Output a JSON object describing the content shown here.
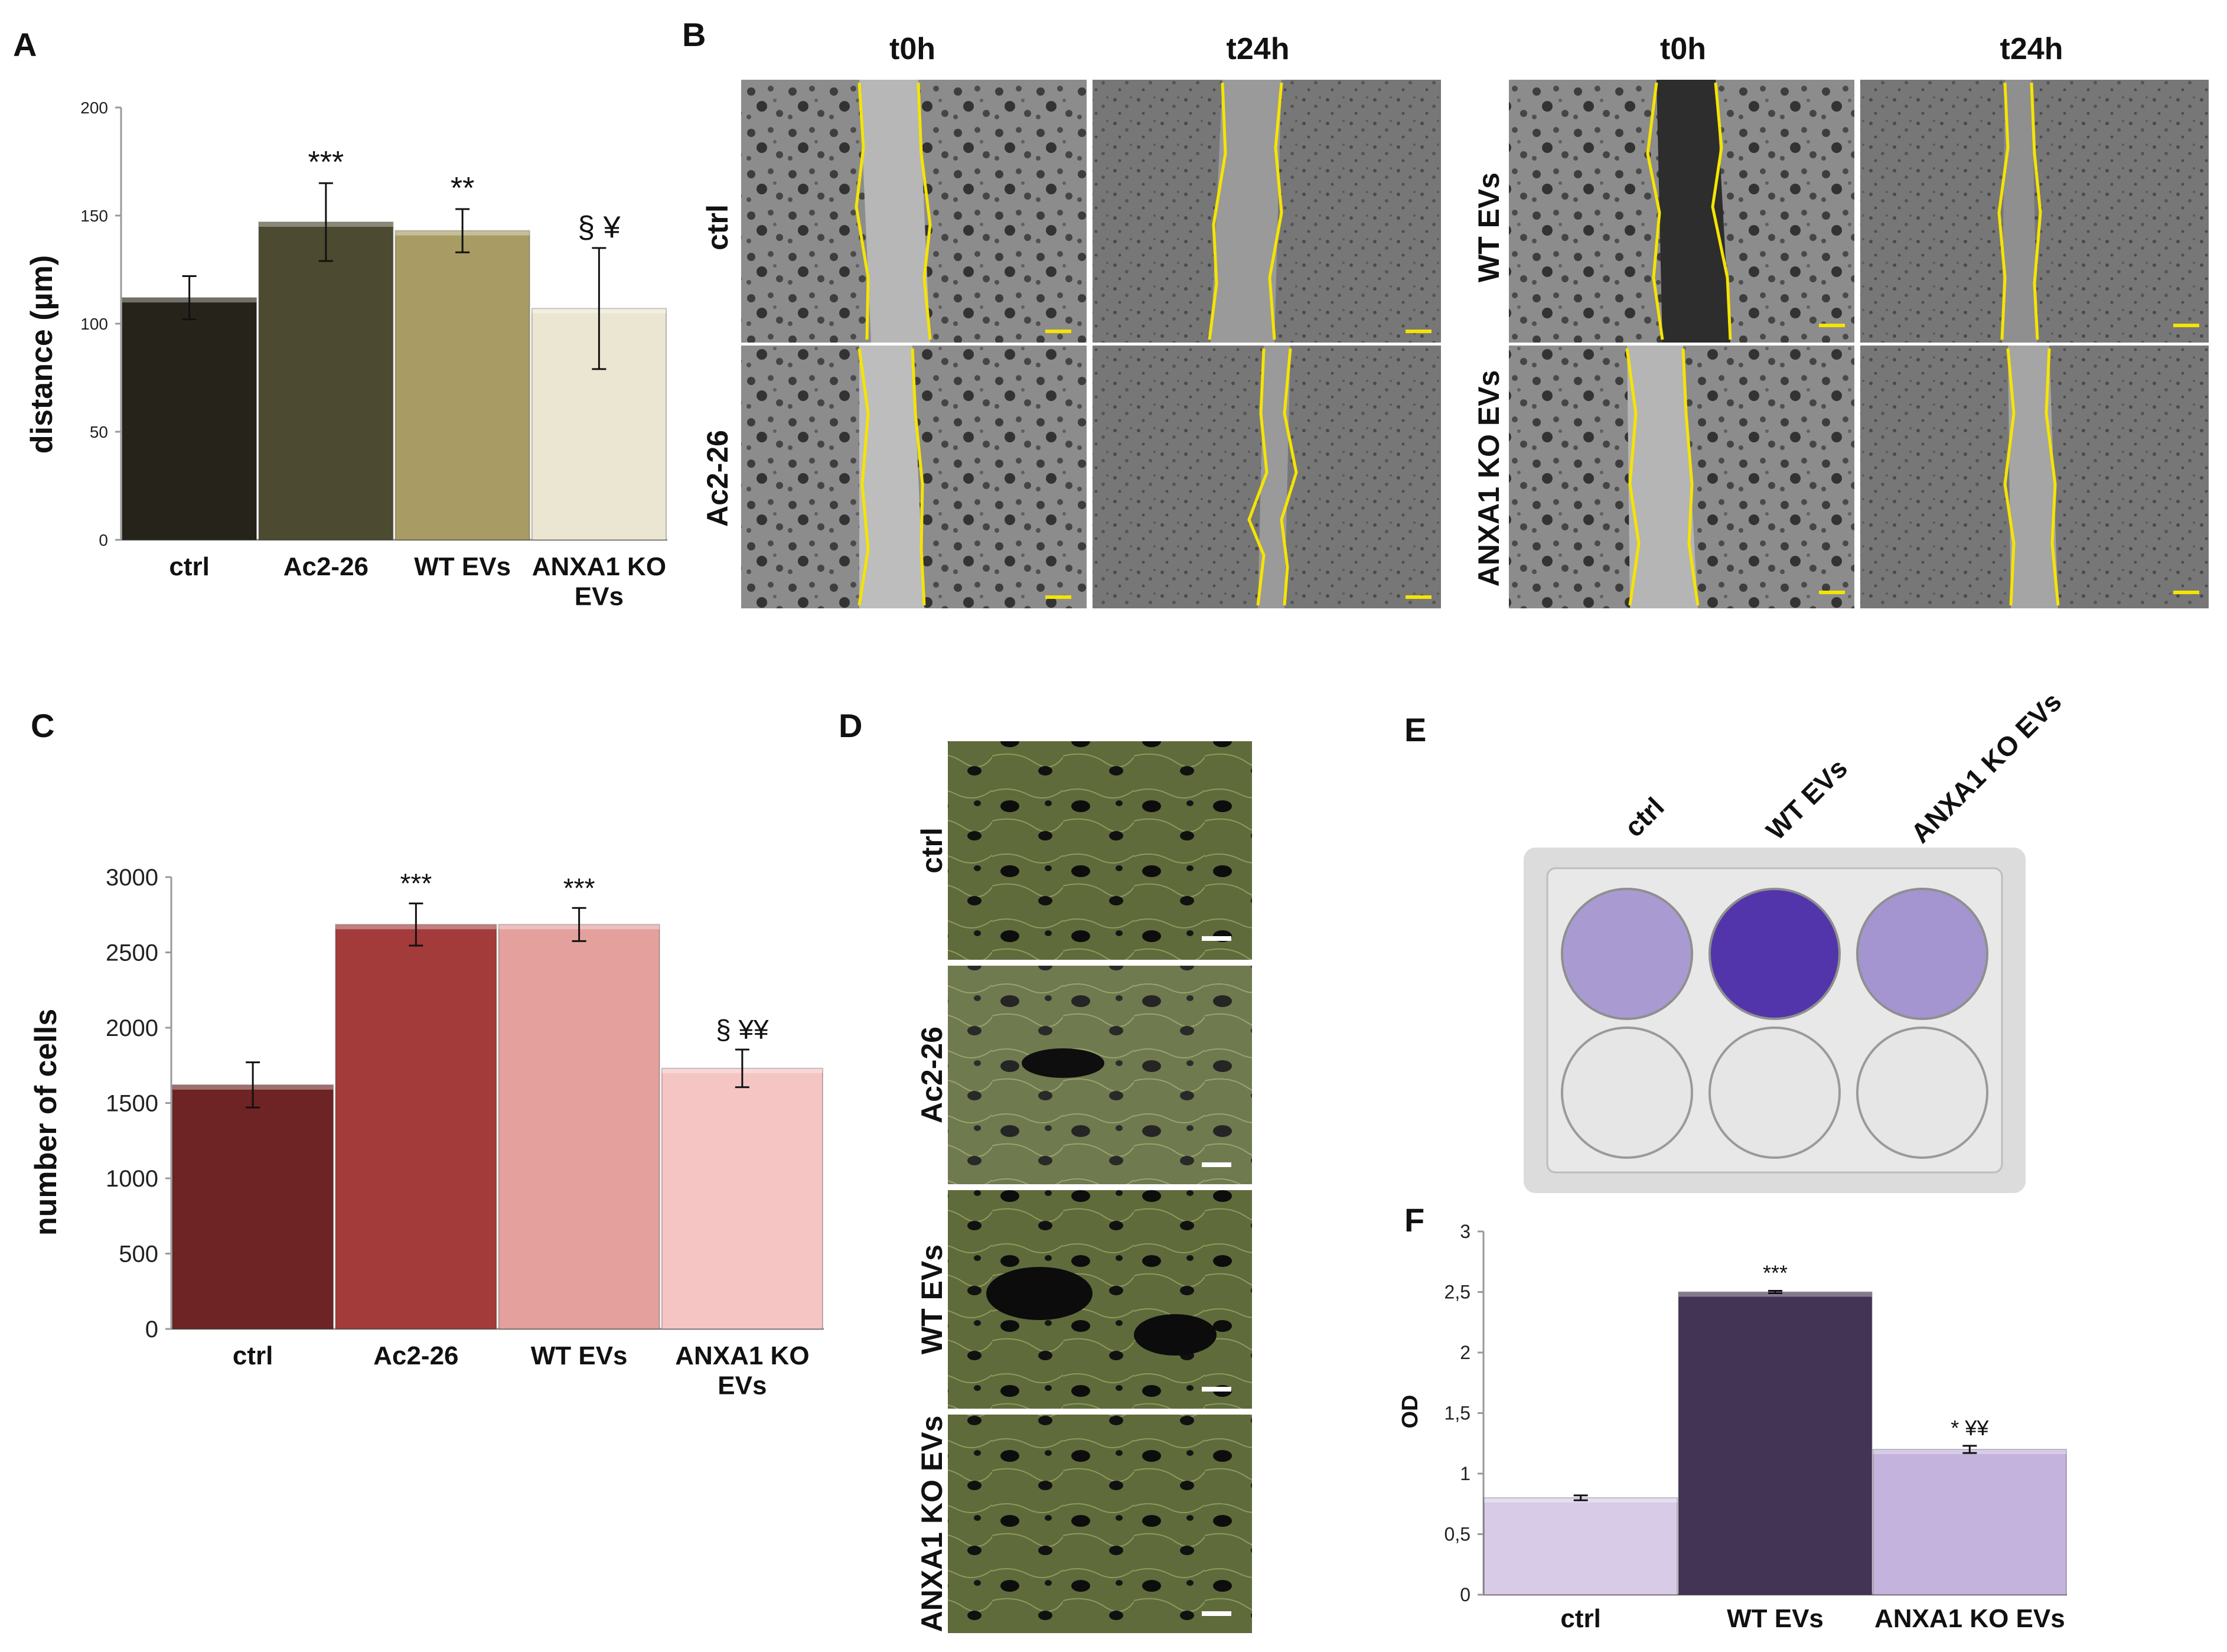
{
  "panels": {
    "A": {
      "letter": "A"
    },
    "B": {
      "letter": "B",
      "columns": [
        "t0h",
        "t24h",
        "t0h",
        "t24h"
      ],
      "rows_left": [
        "ctrl",
        "Ac2-26"
      ],
      "rows_right": [
        "WT EVs",
        "ANXA1 KO EVs"
      ]
    },
    "C": {
      "letter": "C"
    },
    "D": {
      "letter": "D",
      "rows": [
        "ctrl",
        "Ac2-26",
        "WT EVs",
        "ANXA1 KO EVs"
      ]
    },
    "E": {
      "letter": "E",
      "columns": [
        "ctrl",
        "WT EVs",
        "ANXA1 KO EVs"
      ]
    },
    "F": {
      "letter": "F"
    }
  },
  "colors": {
    "yellow_outline": "#f5e400",
    "micro_bg": "#8a8a8a",
    "tissue_green": "#5d6b3a",
    "plate_bg": "#dcdcdc",
    "crystal_violet_light": "#a89ad0",
    "crystal_violet_dark": "#4d2fa8"
  },
  "chart_data": [
    {
      "id": "A",
      "type": "bar",
      "title": "",
      "xlabel": "",
      "ylabel": "distance (µm)",
      "ylim": [
        0,
        200
      ],
      "yticks": [
        "0",
        "50",
        "100",
        "150",
        "200"
      ],
      "categories": [
        "ctrl",
        "Ac2-26",
        "WT EVs",
        "ANXA1 KO EVs"
      ],
      "category_lines": [
        [
          "ctrl"
        ],
        [
          "Ac2-26"
        ],
        [
          "WT EVs"
        ],
        [
          "ANXA1 KO",
          "EVs"
        ]
      ],
      "values": [
        112,
        147,
        143,
        107
      ],
      "errors": [
        10,
        18,
        10,
        28
      ],
      "significance": [
        "",
        "***",
        "**",
        "§  ¥"
      ],
      "colors": [
        "#26241a",
        "#4c4a30",
        "#a89c64",
        "#ebe6d2"
      ]
    },
    {
      "id": "C",
      "type": "bar",
      "title": "",
      "xlabel": "",
      "ylabel": "number of cells",
      "ylim": [
        0,
        3000
      ],
      "yticks": [
        "0",
        "500",
        "1000",
        "1500",
        "2000",
        "2500",
        "3000"
      ],
      "categories": [
        "ctrl",
        "Ac2-26",
        "WT EVs",
        "ANXA1 KO EVs"
      ],
      "category_lines": [
        [
          "ctrl"
        ],
        [
          "Ac2-26"
        ],
        [
          "WT EVs"
        ],
        [
          "ANXA1 KO",
          "EVs"
        ]
      ],
      "values": [
        1620,
        2685,
        2685,
        1730
      ],
      "errors": [
        150,
        140,
        110,
        125
      ],
      "significance": [
        "",
        "***",
        "***",
        "§ ¥¥"
      ],
      "colors": [
        "#6e2424",
        "#a33b3b",
        "#e3a09d",
        "#f5c5c4"
      ]
    },
    {
      "id": "F",
      "type": "bar",
      "title": "",
      "xlabel": "",
      "ylabel": "OD",
      "ylim": [
        0,
        3
      ],
      "yticks": [
        "0",
        "0,5",
        "1",
        "1,5",
        "2",
        "2,5",
        "3"
      ],
      "categories": [
        "ctrl",
        "WT EVs",
        "ANXA1 KO EVs"
      ],
      "category_lines": [
        [
          "ctrl"
        ],
        [
          "WT EVs"
        ],
        [
          "ANXA1 KO EVs"
        ]
      ],
      "values": [
        0.8,
        2.5,
        1.2
      ],
      "errors": [
        0.02,
        0.01,
        0.03
      ],
      "significance": [
        "",
        "***",
        "* ¥¥"
      ],
      "colors": [
        "#d8cbe8",
        "#433355",
        "#c4b3dc"
      ]
    }
  ]
}
